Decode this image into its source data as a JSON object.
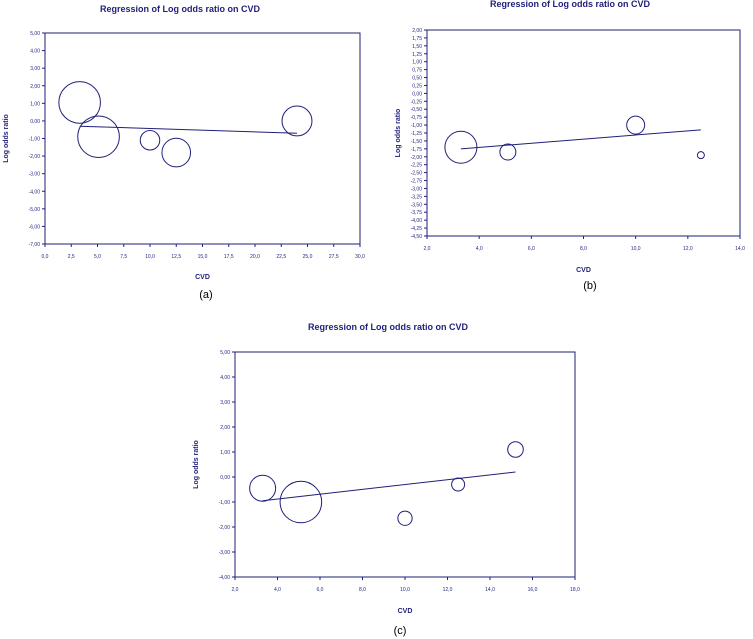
{
  "chart_data": [
    {
      "id": "a",
      "type": "scatter",
      "title": "Regression of Log odds ratio on CVD",
      "xlabel": "CVD",
      "ylabel": "Log odds ratio",
      "caption": "(a)",
      "xlim": [
        0,
        30
      ],
      "ylim": [
        -7,
        5
      ],
      "xticks": [
        "0,0",
        "2,5",
        "5,0",
        "7,5",
        "10,0",
        "12,5",
        "15,0",
        "17,5",
        "20,0",
        "22,5",
        "25,0",
        "27,5",
        "30,0"
      ],
      "yticks": [
        "5,00",
        "4,00",
        "3,00",
        "2,00",
        "1,00",
        "0,00",
        "-1,00",
        "-2,00",
        "-3,00",
        "-4,00",
        "-5,00",
        "-6,00",
        "-7,00"
      ],
      "points": [
        {
          "x": 3.3,
          "y": 1.05,
          "weight": 1.6
        },
        {
          "x": 5.1,
          "y": -0.9,
          "weight": 1.6
        },
        {
          "x": 10.0,
          "y": -1.1,
          "weight": 0.75
        },
        {
          "x": 12.5,
          "y": -1.8,
          "weight": 1.1
        },
        {
          "x": 24.0,
          "y": 0.0,
          "weight": 1.15
        }
      ],
      "regression_line": {
        "x": [
          3.3,
          24.0
        ],
        "y": [
          -0.3,
          -0.7
        ]
      },
      "grid": false
    },
    {
      "id": "b",
      "type": "scatter",
      "title": "Regression of Log odds ratio on CVD",
      "xlabel": "CVD",
      "ylabel": "Log odds ratio",
      "caption": "(b)",
      "xlim": [
        2,
        14
      ],
      "ylim": [
        -4.5,
        2
      ],
      "xticks": [
        "2,0",
        "4,0",
        "6,0",
        "8,0",
        "10,0",
        "12,0",
        "14,0"
      ],
      "yticks": [
        "2,00",
        "1,75",
        "1,50",
        "1,25",
        "1,00",
        "0,75",
        "0,50",
        "0,25",
        "0,00",
        "-0,25",
        "-0,50",
        "-0,75",
        "-1,00",
        "-1,25",
        "-1,50",
        "-1,75",
        "-2,00",
        "-2,25",
        "-2,50",
        "-2,75",
        "-3,00",
        "-3,25",
        "-3,50",
        "-3,75",
        "-4,00",
        "-4,25",
        "-4,50"
      ],
      "points": [
        {
          "x": 3.3,
          "y": -1.7,
          "weight": 1.6
        },
        {
          "x": 5.1,
          "y": -1.85,
          "weight": 0.8
        },
        {
          "x": 10.0,
          "y": -1.0,
          "weight": 0.9
        },
        {
          "x": 12.5,
          "y": -1.95,
          "weight": 0.35
        }
      ],
      "regression_line": {
        "x": [
          3.3,
          12.5
        ],
        "y": [
          -1.75,
          -1.15
        ]
      },
      "grid": false
    },
    {
      "id": "c",
      "type": "scatter",
      "title": "Regression of Log odds ratio on CVD",
      "xlabel": "CVD",
      "ylabel": "Log odds ratio",
      "caption": "(c)",
      "xlim": [
        2,
        18
      ],
      "ylim": [
        -4,
        5
      ],
      "xticks": [
        "2,0",
        "4,0",
        "6,0",
        "8,0",
        "10,0",
        "12,0",
        "14,0",
        "16,0",
        "18,0"
      ],
      "yticks": [
        "5,00",
        "4,00",
        "3,00",
        "2,00",
        "1,00",
        "0,00",
        "-1,00",
        "-2,00",
        "-3,00",
        "-4,00"
      ],
      "points": [
        {
          "x": 3.3,
          "y": -0.45,
          "weight": 1.0
        },
        {
          "x": 5.1,
          "y": -1.0,
          "weight": 1.6
        },
        {
          "x": 10.0,
          "y": -1.65,
          "weight": 0.55
        },
        {
          "x": 12.5,
          "y": -0.3,
          "weight": 0.5
        },
        {
          "x": 15.2,
          "y": 1.1,
          "weight": 0.6
        }
      ],
      "regression_line": {
        "x": [
          3.3,
          15.2
        ],
        "y": [
          -0.95,
          0.2
        ]
      },
      "grid": false
    }
  ],
  "style": {
    "axis_color": "#1f1f7a",
    "text_color": "#1f1f7a",
    "caption_color": "#000000"
  }
}
